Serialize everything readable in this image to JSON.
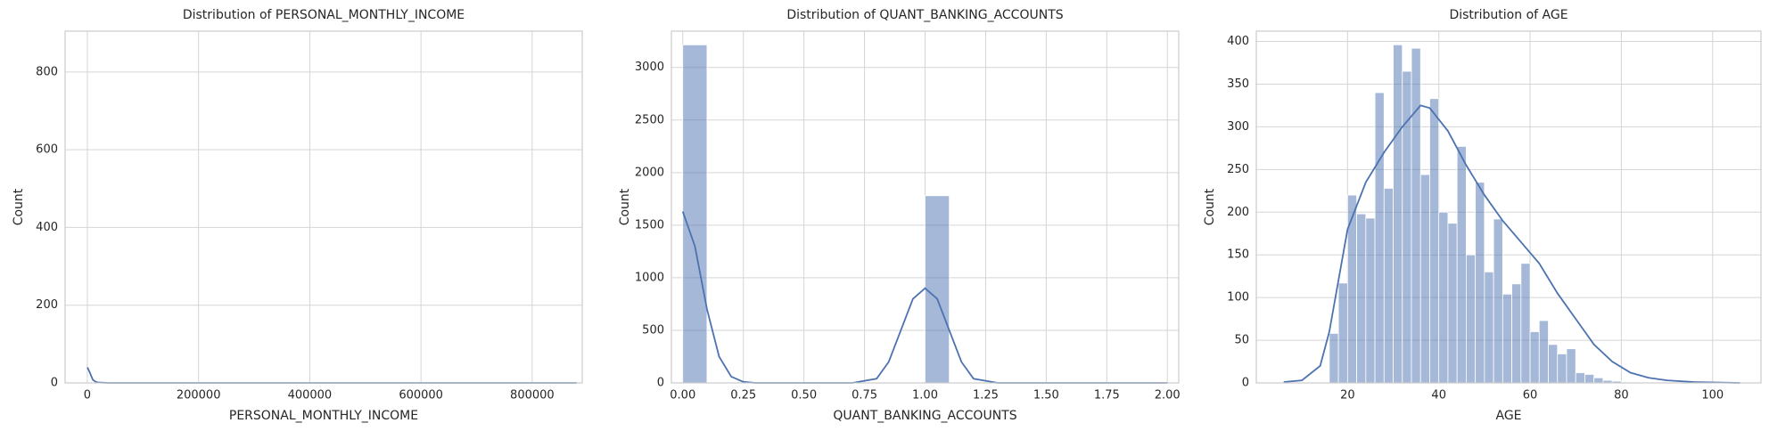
{
  "chart_data": [
    {
      "type": "histogram",
      "title": "Distribution of PERSONAL_MONTHLY_INCOME",
      "x_label": "PERSONAL_MONTHLY_INCOME",
      "y_label": "Count",
      "bins": [],
      "counts": [],
      "color": "#4c72b0",
      "kde_x": [
        0,
        2500,
        5000,
        7500,
        10000,
        15000,
        20000,
        40000,
        880000
      ],
      "kde_y": [
        40,
        33,
        25,
        16,
        8,
        3,
        1,
        0,
        0
      ],
      "xlim": [
        -40000,
        890000
      ],
      "ylim": [
        0,
        905
      ],
      "xticks": [
        0,
        200000,
        400000,
        600000,
        800000
      ],
      "yticks": [
        0,
        200,
        400,
        600,
        800
      ],
      "grid": true
    },
    {
      "type": "histogram",
      "title": "Distribution of QUANT_BANKING_ACCOUNTS",
      "x_label": "QUANT_BANKING_ACCOUNTS",
      "y_label": "Count",
      "bins": [
        0,
        0.1,
        0.2,
        0.3,
        0.4,
        0.5,
        0.6,
        0.7,
        0.8,
        0.9,
        1.0,
        1.1,
        1.2,
        1.3,
        1.4,
        1.5,
        1.6,
        1.7,
        1.8,
        1.9,
        2.0
      ],
      "counts": [
        3215,
        0,
        0,
        0,
        0,
        0,
        0,
        0,
        0,
        0,
        1780,
        0,
        0,
        0,
        0,
        0,
        0,
        0,
        0,
        0
      ],
      "color": "#4c72b0",
      "kde_x": [
        0,
        0.05,
        0.1,
        0.15,
        0.2,
        0.25,
        0.3,
        0.7,
        0.8,
        0.85,
        0.9,
        0.95,
        1.0,
        1.05,
        1.1,
        1.15,
        1.2,
        1.3,
        2.0
      ],
      "kde_y": [
        1630,
        1300,
        700,
        250,
        60,
        10,
        0,
        0,
        40,
        200,
        500,
        800,
        900,
        800,
        500,
        200,
        40,
        0,
        0
      ],
      "xlim": [
        -0.047,
        2.047
      ],
      "ylim": [
        0,
        3345
      ],
      "xticks": [
        {
          "value": 0,
          "label": "0.00"
        },
        {
          "value": 0.25,
          "label": "0.25"
        },
        {
          "value": 0.5,
          "label": "0.50"
        },
        {
          "value": 0.75,
          "label": "0.75"
        },
        {
          "value": 1,
          "label": "1.00"
        },
        {
          "value": 1.25,
          "label": "1.25"
        },
        {
          "value": 1.5,
          "label": "1.50"
        },
        {
          "value": 1.75,
          "label": "1.75"
        },
        {
          "value": 2,
          "label": "2.00"
        }
      ],
      "yticks": [
        0,
        500,
        1000,
        1500,
        2000,
        2500,
        3000
      ],
      "grid": true
    },
    {
      "type": "histogram",
      "title": "Distribution of AGE",
      "x_label": "AGE",
      "y_label": "Count",
      "bins": [
        16,
        18,
        20,
        22,
        24,
        26,
        28,
        30,
        32,
        34,
        36,
        38,
        40,
        42,
        44,
        46,
        48,
        50,
        52,
        54,
        56,
        58,
        60,
        62,
        64,
        66,
        68,
        70,
        72,
        74,
        76,
        78,
        80,
        82,
        84,
        86,
        88,
        90,
        92,
        94
      ],
      "counts": [
        58,
        117,
        220,
        198,
        193,
        340,
        228,
        396,
        365,
        392,
        244,
        333,
        200,
        187,
        277,
        150,
        235,
        130,
        192,
        104,
        116,
        140,
        60,
        73,
        45,
        34,
        40,
        12,
        10,
        6,
        3,
        2,
        1,
        1,
        0,
        0,
        0,
        0,
        1
      ],
      "color": "#4c72b0",
      "kde_x": [
        6,
        10,
        14,
        16,
        18,
        20,
        24,
        28,
        32,
        36,
        38,
        42,
        46,
        50,
        54,
        58,
        62,
        66,
        70,
        74,
        78,
        82,
        86,
        90,
        96,
        106
      ],
      "kde_y": [
        1,
        3,
        20,
        60,
        120,
        180,
        235,
        270,
        300,
        325,
        322,
        295,
        255,
        220,
        190,
        165,
        140,
        105,
        75,
        45,
        25,
        12,
        6,
        3,
        1,
        0
      ],
      "xlim": [
        0,
        110.6
      ],
      "ylim": [
        0,
        412
      ],
      "xticks": [
        20,
        40,
        60,
        80,
        100
      ],
      "yticks": [
        0,
        50,
        100,
        150,
        200,
        250,
        300,
        350,
        400
      ],
      "grid": true
    }
  ]
}
